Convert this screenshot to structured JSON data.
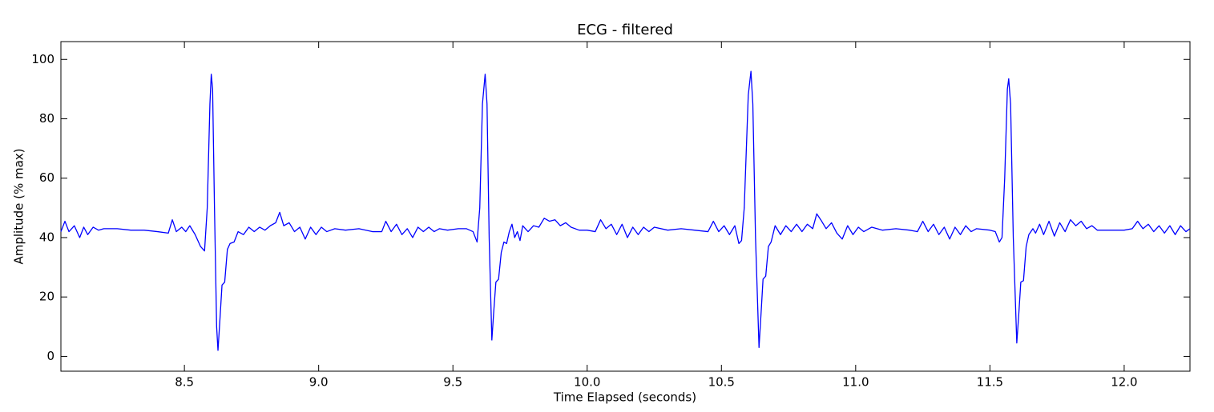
{
  "chart_data": {
    "type": "line",
    "title": "ECG - filtered",
    "x_label": "Time Elapsed (seconds)",
    "y_label": "Amplitude (% max)",
    "xlim": [
      8.04,
      12.245
    ],
    "ylim": [
      -5,
      106
    ],
    "xticks": [
      8.5,
      {
        "value": 9,
        "label": "9.0"
      },
      9.5,
      {
        "value": 10,
        "label": "10.0"
      },
      10.5,
      {
        "value": 11,
        "label": "11.0"
      },
      11.5,
      {
        "value": 12,
        "label": "12.0"
      }
    ],
    "yticks": [
      0,
      20,
      40,
      60,
      80,
      100
    ],
    "grid": false,
    "series": [
      {
        "color": "#0000ff",
        "x": [
          8.04,
          8.055,
          8.07,
          8.09,
          8.11,
          8.125,
          8.14,
          8.16,
          8.18,
          8.2,
          8.25,
          8.3,
          8.35,
          8.4,
          8.44,
          8.455,
          8.47,
          8.49,
          8.505,
          8.52,
          8.54,
          8.56,
          8.575,
          8.585,
          8.595,
          8.6,
          8.605,
          8.612,
          8.62,
          8.625,
          8.632,
          8.64,
          8.65,
          8.66,
          8.67,
          8.685,
          8.7,
          8.72,
          8.74,
          8.76,
          8.78,
          8.8,
          8.82,
          8.84,
          8.855,
          8.87,
          8.89,
          8.91,
          8.93,
          8.95,
          8.97,
          8.99,
          9.01,
          9.03,
          9.06,
          9.1,
          9.15,
          9.2,
          9.235,
          9.25,
          9.27,
          9.29,
          9.31,
          9.33,
          9.35,
          9.37,
          9.39,
          9.41,
          9.43,
          9.45,
          9.48,
          9.52,
          9.55,
          9.575,
          9.59,
          9.6,
          9.61,
          9.62,
          9.627,
          9.635,
          9.645,
          9.652,
          9.66,
          9.67,
          9.68,
          9.69,
          9.7,
          9.71,
          9.72,
          9.73,
          9.74,
          9.75,
          9.76,
          9.78,
          9.8,
          9.82,
          9.84,
          9.86,
          9.88,
          9.9,
          9.92,
          9.94,
          9.97,
          10.0,
          10.03,
          10.05,
          10.07,
          10.09,
          10.11,
          10.13,
          10.15,
          10.17,
          10.19,
          10.21,
          10.23,
          10.25,
          10.3,
          10.35,
          10.4,
          10.45,
          10.47,
          10.49,
          10.51,
          10.53,
          10.55,
          10.565,
          10.575,
          10.585,
          10.6,
          10.61,
          10.617,
          10.627,
          10.64,
          10.648,
          10.655,
          10.665,
          10.675,
          10.685,
          10.7,
          10.72,
          10.74,
          10.76,
          10.78,
          10.8,
          10.82,
          10.84,
          10.855,
          10.87,
          10.89,
          10.91,
          10.93,
          10.95,
          10.97,
          10.99,
          11.01,
          11.03,
          11.06,
          11.1,
          11.15,
          11.2,
          11.23,
          11.25,
          11.27,
          11.29,
          11.31,
          11.33,
          11.35,
          11.37,
          11.39,
          11.41,
          11.43,
          11.45,
          11.5,
          11.52,
          11.535,
          11.545,
          11.555,
          11.565,
          11.57,
          11.577,
          11.587,
          11.6,
          11.608,
          11.615,
          11.625,
          11.635,
          11.645,
          11.66,
          11.67,
          11.685,
          11.7,
          11.72,
          11.74,
          11.76,
          11.78,
          11.8,
          11.82,
          11.84,
          11.86,
          11.88,
          11.9,
          11.95,
          12.0,
          12.03,
          12.05,
          12.07,
          12.09,
          12.11,
          12.13,
          12.15,
          12.17,
          12.19,
          12.21,
          12.23,
          12.245
        ],
        "values": [
          42,
          45.5,
          42,
          44,
          40,
          43.5,
          41,
          43.5,
          42.5,
          43,
          43,
          42.5,
          42.5,
          42,
          41.5,
          46,
          42,
          43.5,
          42,
          44,
          41,
          37,
          35.5,
          50,
          85,
          95,
          90,
          50,
          10,
          2,
          12,
          24,
          25,
          36,
          38,
          38.5,
          42,
          41,
          43.5,
          42,
          43.5,
          42.5,
          44,
          45,
          48.5,
          44,
          45,
          42,
          43.5,
          39.5,
          43.5,
          41,
          43.5,
          42,
          43,
          42.5,
          43,
          42,
          42,
          45.5,
          42,
          44.5,
          41,
          43,
          40,
          43.5,
          42,
          43.5,
          42,
          43,
          42.5,
          43,
          43,
          42,
          38.5,
          50,
          85,
          95,
          85,
          40,
          5.5,
          15,
          25,
          26,
          35,
          38.5,
          38,
          42,
          44.5,
          40,
          42,
          39,
          44,
          42,
          44,
          43.5,
          46.5,
          45.5,
          46,
          44,
          45,
          43.5,
          42.5,
          42.5,
          42,
          46,
          43,
          44.5,
          41,
          44.5,
          40,
          43.5,
          41,
          43.5,
          42,
          43.5,
          42.5,
          43,
          42.5,
          42,
          45.5,
          42,
          44,
          41,
          44,
          38,
          39,
          50,
          88,
          96,
          85,
          40,
          3,
          15,
          26,
          27,
          37,
          38.5,
          44,
          41,
          44,
          42,
          44.5,
          42,
          44.5,
          43,
          48,
          46,
          43,
          45,
          41.5,
          39.5,
          44,
          41,
          43.5,
          42,
          43.5,
          42.5,
          43,
          42.5,
          42,
          45.5,
          42,
          44.5,
          41,
          43.5,
          39.5,
          43.5,
          41,
          44,
          42,
          43,
          42.5,
          42,
          38.5,
          40,
          60,
          90,
          93.5,
          85,
          40,
          4.5,
          15,
          25,
          25.5,
          37,
          41,
          43,
          41.5,
          44.5,
          41,
          45.5,
          40.5,
          45,
          42,
          46,
          44,
          45.5,
          43,
          44,
          42.5,
          42.5,
          42.5,
          43,
          45.5,
          43,
          44.5,
          42,
          44,
          41.5,
          44,
          41,
          44,
          42,
          43
        ]
      }
    ]
  }
}
